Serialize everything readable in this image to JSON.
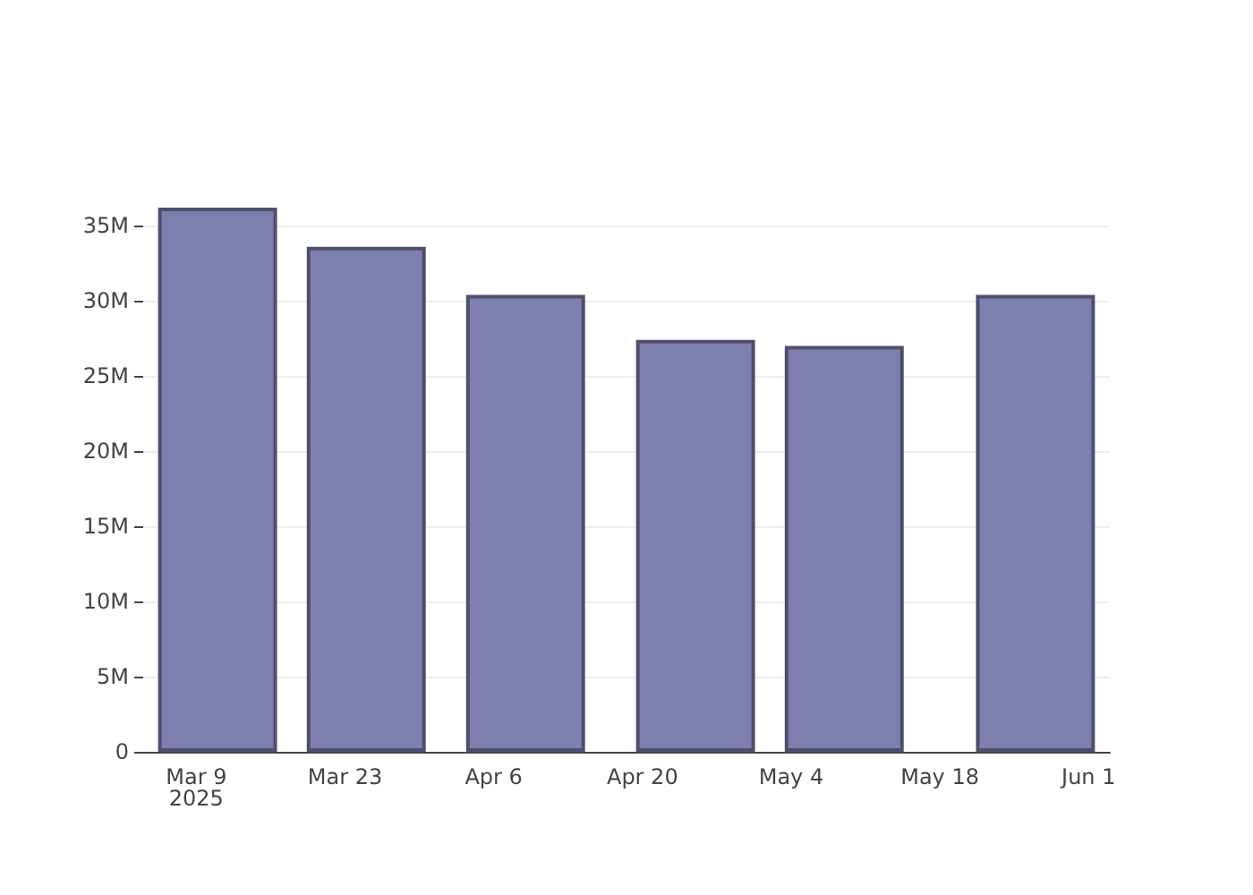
{
  "chart_data": {
    "type": "bar",
    "x": [
      "2025-03-11",
      "2025-03-25",
      "2025-04-09",
      "2025-04-25",
      "2025-05-09",
      "2025-05-27"
    ],
    "values": [
      36200000,
      33600000,
      30400000,
      27400000,
      27000000,
      30400000
    ],
    "color": "#7f7faf",
    "xlim": [
      "2025-03-04",
      "2025-06-03"
    ],
    "xticks": [
      {
        "value": "2025-03-09",
        "label": "Mar 9\n2025"
      },
      {
        "value": "2025-03-23",
        "label": "Mar 23"
      },
      {
        "value": "2025-04-06",
        "label": "Apr 6"
      },
      {
        "value": "2025-04-20",
        "label": "Apr 20"
      },
      {
        "value": "2025-05-04",
        "label": "May 4"
      },
      {
        "value": "2025-05-18",
        "label": "May 18"
      },
      {
        "value": "2025-06-01",
        "label": "Jun 1"
      }
    ],
    "yticks": [
      {
        "value": 0,
        "label": "0"
      },
      {
        "value": 5000000,
        "label": "5M"
      },
      {
        "value": 10000000,
        "label": "10M"
      },
      {
        "value": 15000000,
        "label": "15M"
      },
      {
        "value": 20000000,
        "label": "20M"
      },
      {
        "value": 25000000,
        "label": "25M"
      },
      {
        "value": 30000000,
        "label": "30M"
      },
      {
        "value": 35000000,
        "label": "35M"
      }
    ],
    "ylim": [
      0,
      36200000
    ],
    "grid": "y"
  }
}
